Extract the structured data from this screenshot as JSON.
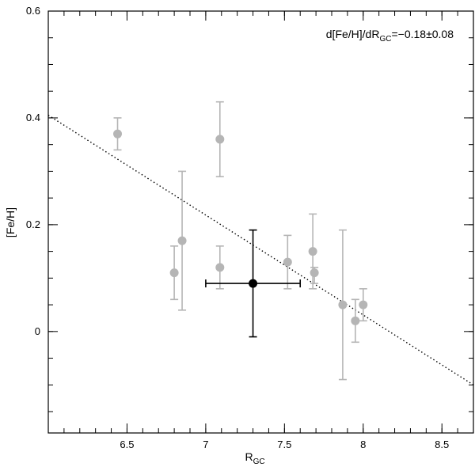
{
  "chart_data": {
    "type": "scatter",
    "xlabel": "R",
    "xlabel_sub": "GC",
    "ylabel": "[Fe/H]",
    "xlim": [
      6.0,
      8.7
    ],
    "ylim": [
      -0.19,
      0.6
    ],
    "xticks": [
      6.5,
      7,
      7.5,
      8,
      8.5
    ],
    "xtick_labels": [
      "6.5",
      "7",
      "7.5",
      "8",
      "8.5"
    ],
    "yticks": [
      0,
      0.2,
      0.4,
      0.6
    ],
    "ytick_labels": [
      "0",
      "0.2",
      "0.4",
      "0.6"
    ],
    "annotation": {
      "prefix": "d[Fe/H]/dR",
      "sub": "GC",
      "suffix": "=−0.18±0.08"
    },
    "grid": false,
    "legend": "none",
    "fit_line": {
      "style": "dotted",
      "color": "#000000",
      "points": [
        [
          6.0,
          0.405
        ],
        [
          8.7,
          -0.1
        ]
      ]
    },
    "series": [
      {
        "color": "#b5b5b5",
        "points": [
          {
            "x": 6.44,
            "y": 0.37,
            "yerr_low": 0.34,
            "yerr_high": 0.4
          },
          {
            "x": 6.8,
            "y": 0.11,
            "yerr_low": 0.06,
            "yerr_high": 0.16
          },
          {
            "x": 6.85,
            "y": 0.17,
            "yerr_low": 0.04,
            "yerr_high": 0.3
          },
          {
            "x": 7.09,
            "y": 0.36,
            "yerr_low": 0.29,
            "yerr_high": 0.43
          },
          {
            "x": 7.09,
            "y": 0.12,
            "yerr_low": 0.08,
            "yerr_high": 0.16
          },
          {
            "x": 7.52,
            "y": 0.13,
            "yerr_low": 0.08,
            "yerr_high": 0.18
          },
          {
            "x": 7.68,
            "y": 0.15,
            "yerr_low": 0.08,
            "yerr_high": 0.22
          },
          {
            "x": 7.69,
            "y": 0.11,
            "yerr_low": 0.09,
            "yerr_high": 0.12
          },
          {
            "x": 7.87,
            "y": 0.05,
            "yerr_low": -0.09,
            "yerr_high": 0.19
          },
          {
            "x": 7.95,
            "y": 0.02,
            "yerr_low": -0.02,
            "yerr_high": 0.06
          },
          {
            "x": 8.0,
            "y": 0.05,
            "yerr_low": 0.02,
            "yerr_high": 0.08
          }
        ]
      },
      {
        "color": "#000000",
        "points": [
          {
            "x": 7.3,
            "y": 0.09,
            "yerr_low": -0.01,
            "yerr_high": 0.19,
            "xerr_low": 7.0,
            "xerr_high": 7.6
          }
        ]
      }
    ]
  }
}
